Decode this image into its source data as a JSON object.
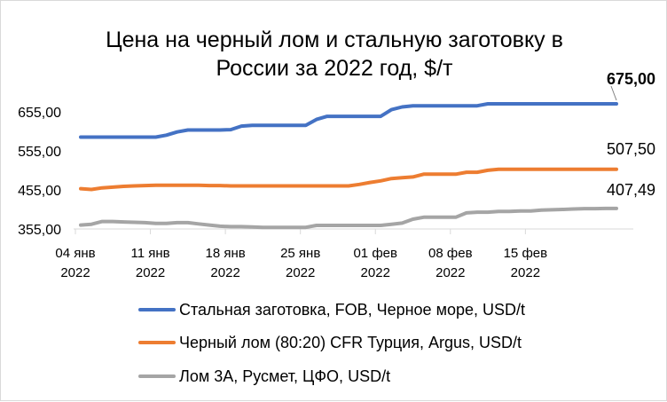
{
  "chart_data": {
    "type": "line",
    "title": "Цена на черный лом и стальную заготовку в России за 2022 год, $/т",
    "title_lines": [
      "Цена на черный лом и стальную заготовку в",
      "России за 2022 год, $/т"
    ],
    "ylim": [
      355,
      675
    ],
    "y_ticks": [
      "355,00",
      "455,00",
      "555,00",
      "655,00"
    ],
    "y_tick_values": [
      355,
      455,
      555,
      655
    ],
    "x_start": "2022-01-04",
    "x_ticks": [
      {
        "day": 0,
        "line1": "04 янв",
        "line2": "2022"
      },
      {
        "day": 7,
        "line1": "11 янв",
        "line2": "2022"
      },
      {
        "day": 14,
        "line1": "18 янв",
        "line2": "2022"
      },
      {
        "day": 21,
        "line1": "25 янв",
        "line2": "2022"
      },
      {
        "day": 28,
        "line1": "01 фев",
        "line2": "2022"
      },
      {
        "day": 35,
        "line1": "08 фев",
        "line2": "2022"
      },
      {
        "day": 42,
        "line1": "15 фев",
        "line2": "2022"
      }
    ],
    "x_range": [
      0,
      50
    ],
    "grid": false,
    "legend_position": "bottom",
    "series": [
      {
        "name": "Стальная заготовка, FOB, Черное море, USD/t",
        "color": "#4472c4",
        "end_label": "675,00",
        "end_label_bold": true,
        "points": [
          [
            0,
            590
          ],
          [
            1,
            590
          ],
          [
            2,
            590
          ],
          [
            3,
            590
          ],
          [
            4,
            590
          ],
          [
            5,
            590
          ],
          [
            6,
            590
          ],
          [
            7,
            590
          ],
          [
            8,
            595
          ],
          [
            9,
            603
          ],
          [
            10,
            608
          ],
          [
            11,
            608
          ],
          [
            12,
            608
          ],
          [
            13,
            608
          ],
          [
            14,
            609
          ],
          [
            15,
            618
          ],
          [
            16,
            620
          ],
          [
            17,
            620
          ],
          [
            18,
            620
          ],
          [
            19,
            620
          ],
          [
            20,
            620
          ],
          [
            21,
            620
          ],
          [
            22,
            635
          ],
          [
            23,
            643
          ],
          [
            24,
            643
          ],
          [
            25,
            643
          ],
          [
            26,
            643
          ],
          [
            27,
            643
          ],
          [
            28,
            643
          ],
          [
            29,
            660
          ],
          [
            30,
            667
          ],
          [
            31,
            670
          ],
          [
            32,
            670
          ],
          [
            33,
            670
          ],
          [
            34,
            670
          ],
          [
            35,
            670
          ],
          [
            36,
            670
          ],
          [
            37,
            670
          ],
          [
            38,
            675
          ],
          [
            39,
            675
          ],
          [
            40,
            675
          ],
          [
            41,
            675
          ],
          [
            42,
            675
          ],
          [
            43,
            675
          ],
          [
            44,
            675
          ],
          [
            45,
            675
          ],
          [
            46,
            675
          ],
          [
            47,
            675
          ],
          [
            48,
            675
          ],
          [
            49,
            675
          ],
          [
            50,
            675
          ]
        ]
      },
      {
        "name": "Черный лом (80:20) CFR Турция, Argus, USD/t",
        "color": "#ed7d31",
        "end_label": "507,50",
        "end_label_bold": false,
        "points": [
          [
            0,
            458
          ],
          [
            1,
            456
          ],
          [
            2,
            460
          ],
          [
            3,
            462
          ],
          [
            4,
            464
          ],
          [
            5,
            465
          ],
          [
            6,
            466
          ],
          [
            7,
            467
          ],
          [
            8,
            467
          ],
          [
            9,
            467
          ],
          [
            10,
            467
          ],
          [
            11,
            467
          ],
          [
            12,
            466
          ],
          [
            13,
            466
          ],
          [
            14,
            465
          ],
          [
            15,
            465
          ],
          [
            16,
            465
          ],
          [
            17,
            465
          ],
          [
            18,
            465
          ],
          [
            19,
            465
          ],
          [
            20,
            465
          ],
          [
            21,
            465
          ],
          [
            22,
            465
          ],
          [
            23,
            465
          ],
          [
            24,
            465
          ],
          [
            25,
            465
          ],
          [
            26,
            469
          ],
          [
            27,
            474
          ],
          [
            28,
            478
          ],
          [
            29,
            484
          ],
          [
            30,
            486
          ],
          [
            31,
            488
          ],
          [
            32,
            495
          ],
          [
            33,
            495
          ],
          [
            34,
            495
          ],
          [
            35,
            495
          ],
          [
            36,
            500
          ],
          [
            37,
            500
          ],
          [
            38,
            505
          ],
          [
            39,
            507.5
          ],
          [
            40,
            507.5
          ],
          [
            41,
            507.5
          ],
          [
            42,
            507.5
          ],
          [
            43,
            507.5
          ],
          [
            44,
            507.5
          ],
          [
            45,
            507.5
          ],
          [
            46,
            507.5
          ],
          [
            47,
            507.5
          ],
          [
            48,
            507.5
          ],
          [
            49,
            507.5
          ],
          [
            50,
            507.5
          ]
        ]
      },
      {
        "name": "Лом 3А, Русмет, ЦФО, USD/t",
        "color": "#a5a5a5",
        "end_label": "407,49",
        "end_label_bold": false,
        "points": [
          [
            0,
            365
          ],
          [
            1,
            367
          ],
          [
            2,
            374
          ],
          [
            3,
            374
          ],
          [
            4,
            373
          ],
          [
            5,
            372
          ],
          [
            6,
            371
          ],
          [
            7,
            369
          ],
          [
            8,
            369
          ],
          [
            9,
            371
          ],
          [
            10,
            371
          ],
          [
            11,
            368
          ],
          [
            12,
            365
          ],
          [
            13,
            362
          ],
          [
            14,
            361
          ],
          [
            15,
            361
          ],
          [
            16,
            360
          ],
          [
            17,
            359
          ],
          [
            18,
            359
          ],
          [
            19,
            359
          ],
          [
            20,
            359
          ],
          [
            21,
            359
          ],
          [
            22,
            364
          ],
          [
            23,
            364
          ],
          [
            24,
            364
          ],
          [
            25,
            364
          ],
          [
            26,
            364
          ],
          [
            27,
            364
          ],
          [
            28,
            364
          ],
          [
            29,
            367
          ],
          [
            30,
            370
          ],
          [
            31,
            380
          ],
          [
            32,
            385
          ],
          [
            33,
            385
          ],
          [
            34,
            385
          ],
          [
            35,
            385
          ],
          [
            36,
            396
          ],
          [
            37,
            398
          ],
          [
            38,
            398
          ],
          [
            39,
            400
          ],
          [
            40,
            400
          ],
          [
            41,
            401
          ],
          [
            42,
            401
          ],
          [
            43,
            403
          ],
          [
            44,
            404
          ],
          [
            45,
            405
          ],
          [
            46,
            406
          ],
          [
            47,
            407
          ],
          [
            48,
            407
          ],
          [
            49,
            407.5
          ],
          [
            50,
            407.49
          ]
        ]
      }
    ]
  }
}
